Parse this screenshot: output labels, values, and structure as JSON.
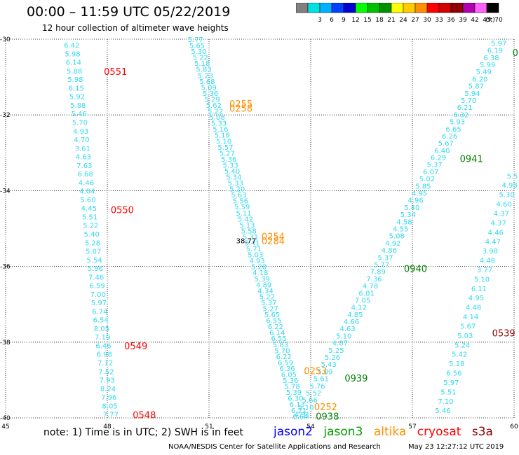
{
  "header": {
    "title": "00:00 – 11:59 UTC 05/22/2019",
    "subtitle": "12 hour collection of altimeter wave heights"
  },
  "color_scale": {
    "unit": "(ft)",
    "bins": [
      {
        "label": "",
        "color": "#808080"
      },
      {
        "label": "3",
        "color": "#00e0e0"
      },
      {
        "label": "6",
        "color": "#00b0ff"
      },
      {
        "label": "9",
        "color": "#0040ff"
      },
      {
        "label": "12",
        "color": "#0000d0"
      },
      {
        "label": "15",
        "color": "#00ff00"
      },
      {
        "label": "18",
        "color": "#00c000"
      },
      {
        "label": "21",
        "color": "#009000"
      },
      {
        "label": "24",
        "color": "#ffff00"
      },
      {
        "label": "27",
        "color": "#ffcc00"
      },
      {
        "label": "30",
        "color": "#ff9000"
      },
      {
        "label": "33",
        "color": "#ff0000"
      },
      {
        "label": "36",
        "color": "#d00000"
      },
      {
        "label": "39",
        "color": "#900000"
      },
      {
        "label": "42",
        "color": "#b000b0"
      },
      {
        "label": "45",
        "color": "#ff60ff"
      },
      {
        "label": "70",
        "color": "#000000"
      }
    ]
  },
  "chart_data": {
    "type": "scatter",
    "xlim": [
      45,
      60
    ],
    "ylim": [
      -40,
      -30
    ],
    "x_ticks": [
      45,
      48,
      51,
      54,
      57,
      60
    ],
    "y_ticks": [
      -30,
      -32,
      -34,
      -36,
      -38,
      -40
    ],
    "grid": true,
    "tracks": [
      {
        "color": "#30d8f0",
        "x_start": 46.95,
        "y_start": -30.15,
        "x_end": 48.1,
        "y_end": -39.9,
        "values": [
          "6.42",
          "5.98",
          "6.14",
          "5.88",
          "5.98",
          "6.15",
          "5.92",
          "5.88",
          "5.46",
          "5.70",
          "4.93",
          "4.70",
          "3.61",
          "4.63",
          "7.63",
          "6.68",
          "4.46",
          "4.04",
          "5.60",
          "4.45",
          "5.51",
          "5.22",
          "5.40",
          "5.28",
          "5.07",
          "5.54",
          "5.96",
          "7.46",
          "6.59",
          "7.00",
          "5.97",
          "6.74",
          "6.54",
          "8.05",
          "7.19",
          "6.46",
          "6.98",
          "7.12",
          "7.52",
          "7.93",
          "8.24",
          "7.96",
          "8.05",
          "7.77"
        ]
      },
      {
        "color": "#30d8f0",
        "x_start": 50.6,
        "y_start": -30.0,
        "x_end": 53.7,
        "y_end": -39.95,
        "values": [
          "5.77",
          "5.65",
          "5.30",
          "5.22",
          "5.18",
          "5.83",
          "5.23",
          "5.68",
          "5.09",
          "5.36",
          "5.29",
          "5.62",
          "5.22",
          "5.08",
          "5.33",
          "5.16",
          "5.18",
          "5.10",
          "5.57",
          "5.27",
          "5.36",
          "5.33",
          "5.40",
          "5.34",
          "5.33",
          "5.20",
          "5.63",
          "5.56",
          "5.59",
          "5.11",
          "5.42",
          "5.13",
          "5.58",
          "5.31",
          "5.41",
          "5.71",
          "5.03",
          "4.93",
          "5.28",
          "4.18",
          "5.39",
          "4.89",
          "4.34",
          "5.22",
          "5.37",
          "5.27",
          "5.65",
          "6.55",
          "6.22",
          "6.14",
          "6.55",
          "5.83",
          "5.70",
          "6.22",
          "6.59",
          "6.36",
          "6.05",
          "5.36",
          "5.78",
          "5.39",
          "6.30",
          "6.13",
          "6.21",
          "6.64"
        ]
      },
      {
        "color": "#30d8f0",
        "x_start": 53.75,
        "y_start": -39.9,
        "x_end": 59.55,
        "y_end": -30.1,
        "values": [
          "4.91",
          "5.10",
          "5.66",
          "5.52",
          "5.76",
          "5.61",
          "5.09",
          "5.43",
          "5.26",
          "5.25",
          "4.87",
          "5.10",
          "4.63",
          "4.66",
          "4.85",
          "4.12",
          "7.05",
          "6.01",
          "4.78",
          "7.36",
          "7.89",
          "5.77",
          "5.37",
          "4.86",
          "4.92",
          "5.08",
          "4.55",
          "4.58",
          "5.34",
          "5.40",
          "4.96",
          "4.95",
          "5.85",
          "5.02",
          "6.07",
          "5.37",
          "6.29",
          "6.40",
          "5.67",
          "6.26",
          "6.65",
          "5.93",
          "6.32",
          "6.21",
          "5.70",
          "5.94",
          "5.87",
          "6.20",
          "5.49",
          "5.99",
          "6.38",
          "6.19",
          "5.97"
        ]
      },
      {
        "color": "#30d8f0",
        "x_start": 59.95,
        "y_start": -33.6,
        "x_end": 57.9,
        "y_end": -39.8,
        "values": [
          "5.5",
          "4.98",
          "5.30",
          "4.60",
          "4.37",
          "4.37",
          "4.46",
          "4.47",
          "3.98",
          "4.48",
          "3.77",
          "5.10",
          "6.11",
          "4.95",
          "4.48",
          "4.14",
          "5.67",
          "5.03",
          "5.24",
          "5.42",
          "5.18",
          "6.56",
          "5.97",
          "5.51",
          "7.10",
          "5.46"
        ]
      }
    ],
    "time_labels": [
      {
        "text": "0551",
        "x": 47.9,
        "y": -30.85,
        "color": "#ff0000"
      },
      {
        "text": "0550",
        "x": 48.1,
        "y": -34.5,
        "color": "#ff0000"
      },
      {
        "text": "0549",
        "x": 48.5,
        "y": -38.1,
        "color": "#ff0000"
      },
      {
        "text": "0548",
        "x": 48.75,
        "y": -39.92,
        "color": "#ff0000"
      },
      {
        "text": "0255",
        "x": 51.6,
        "y": -31.7,
        "color": "#ff9000"
      },
      {
        "text": "0258",
        "x": 51.6,
        "y": -31.82,
        "color": "#ff9000"
      },
      {
        "text": "0254",
        "x": 52.55,
        "y": -35.2,
        "color": "#ff9000"
      },
      {
        "text": "0284",
        "x": 52.55,
        "y": -35.32,
        "color": "#ff9000"
      },
      {
        "text": "0253",
        "x": 53.8,
        "y": -38.75,
        "color": "#ff9000"
      },
      {
        "text": "0252",
        "x": 54.1,
        "y": -39.7,
        "color": "#ff9000"
      },
      {
        "text": "0938",
        "x": 54.15,
        "y": -39.95,
        "color": "#008000"
      },
      {
        "text": "0939",
        "x": 55.0,
        "y": -38.95,
        "color": "#008000"
      },
      {
        "text": "0940",
        "x": 56.75,
        "y": -36.05,
        "color": "#008000"
      },
      {
        "text": "0941",
        "x": 58.4,
        "y": -33.15,
        "color": "#008000"
      },
      {
        "text": "0539",
        "x": 59.35,
        "y": -37.75,
        "color": "#900000"
      },
      {
        "text": "0",
        "x": 59.95,
        "y": -30.35,
        "color": "#008000"
      },
      {
        "text": "38.77",
        "x": 51.8,
        "y": -35.3,
        "color": "#000000"
      }
    ]
  },
  "legend": {
    "note": "note:  1) Time is in UTC;  2) SWH is in feet",
    "missions": [
      {
        "name": "jason2",
        "color": "#0000ff"
      },
      {
        "name": "jason3",
        "color": "#00a000"
      },
      {
        "name": "altika",
        "color": "#ff9000"
      },
      {
        "name": "cryosat",
        "color": "#ff0000"
      },
      {
        "name": "s3a",
        "color": "#900000"
      }
    ]
  },
  "footer": {
    "credit": "NOAA/NESDIS Center for Satellite Applications and Research",
    "timestamp": "May 23 12:27:12 UTC 2019"
  }
}
